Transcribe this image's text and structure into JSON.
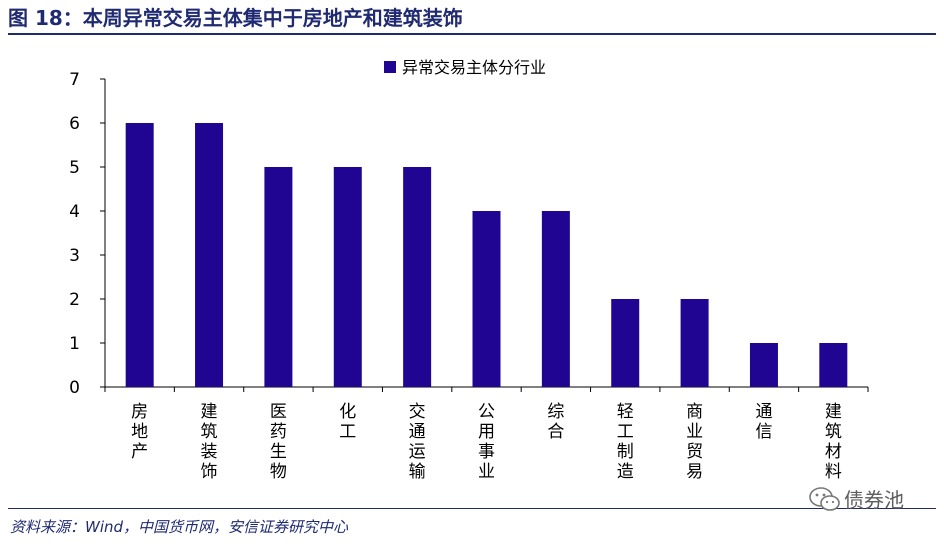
{
  "header": {
    "title": "图 18：本周异常交易主体集中于房地产和建筑装饰"
  },
  "footer": {
    "source": "资料来源：Wind，中国货币网，安信证券研究中心",
    "watermark": "债券池"
  },
  "chart_data": {
    "type": "bar",
    "categories": [
      "房地产",
      "建筑装饰",
      "医药生物",
      "化工",
      "交通运输",
      "公用事业",
      "综合",
      "轻工制造",
      "商业贸易",
      "通信",
      "建筑材料"
    ],
    "series": [
      {
        "name": "异常交易主体分行业",
        "values": [
          6,
          6,
          5,
          5,
          5,
          4,
          4,
          2,
          2,
          1,
          1
        ],
        "color": "#1f0591"
      }
    ],
    "ylim": [
      0,
      7
    ],
    "yticks": [
      0,
      1,
      2,
      3,
      4,
      5,
      6,
      7
    ],
    "grid": false,
    "legend": "top-center",
    "category_label_orientation": "vertical"
  }
}
